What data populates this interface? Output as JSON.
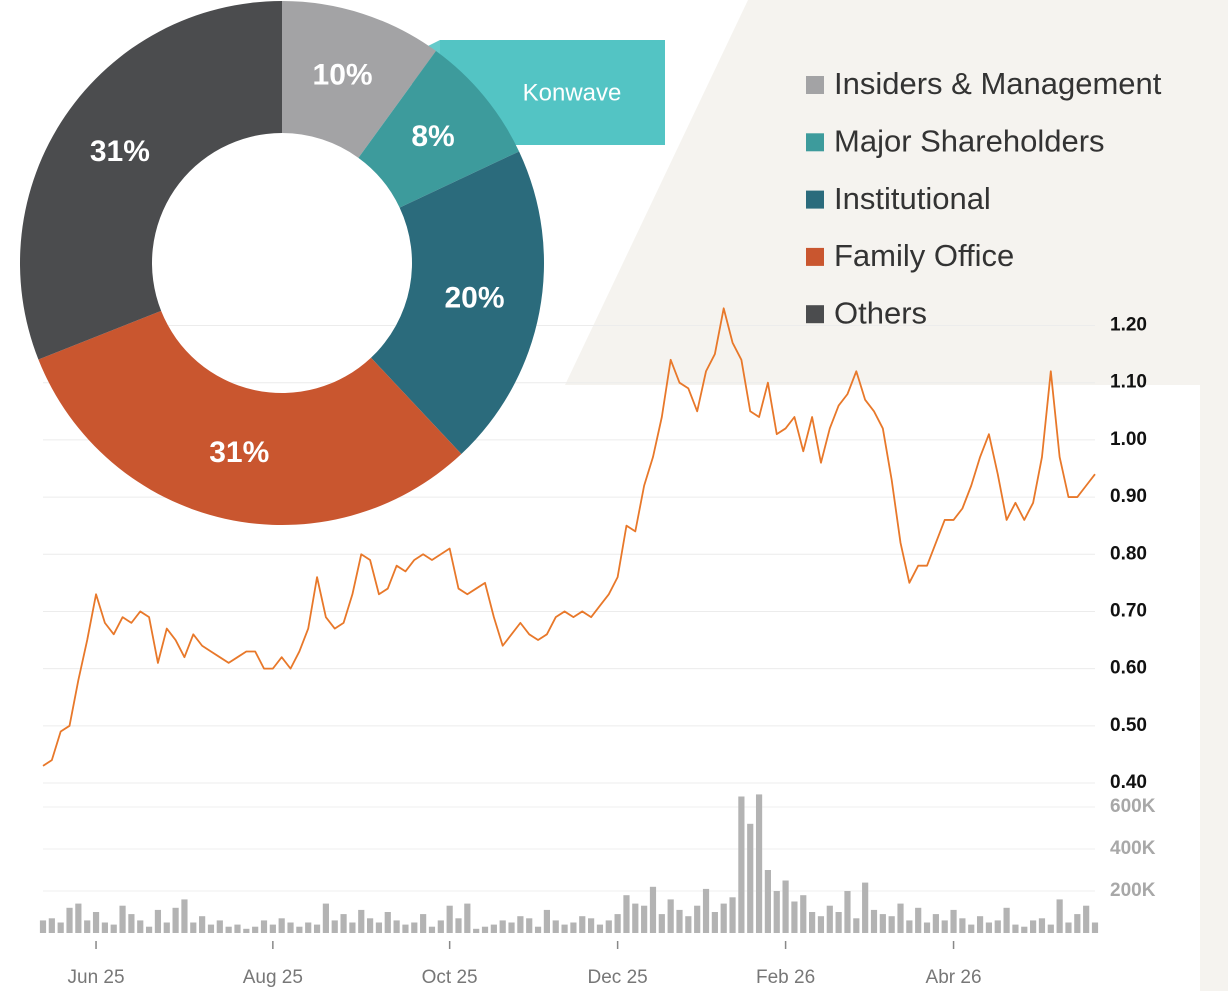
{
  "chart_data": [
    {
      "type": "donut",
      "categories": [
        "Insiders & Management",
        "Major Shareholders",
        "Institutional",
        "Family Office",
        "Others"
      ],
      "values": [
        10,
        8,
        20,
        31,
        31
      ],
      "value_labels": [
        "10%",
        "8%",
        "20%",
        "31%",
        "31%"
      ],
      "colors": [
        "#a3a3a5",
        "#3d9b9c",
        "#2b6b7c",
        "#c9562f",
        "#4b4c4e"
      ],
      "annotation": "Konwave",
      "annotation_color": "#53c4c4",
      "legend": "top-right"
    },
    {
      "type": "line",
      "categories": [
        null,
        null,
        null,
        null,
        null,
        null,
        "Jun 25",
        null,
        null,
        null,
        null,
        null,
        null,
        null,
        null,
        null,
        null,
        null,
        null,
        null,
        null,
        null,
        null,
        null,
        null,
        null,
        "Aug 25",
        null,
        null,
        null,
        null,
        null,
        null,
        null,
        null,
        null,
        null,
        null,
        null,
        null,
        null,
        null,
        null,
        null,
        null,
        null,
        "Oct 25",
        null,
        null,
        null,
        null,
        null,
        null,
        null,
        null,
        null,
        null,
        null,
        null,
        null,
        null,
        null,
        null,
        null,
        null,
        "Dec 25",
        null,
        null,
        null,
        null,
        null,
        null,
        null,
        null,
        null,
        null,
        null,
        null,
        null,
        null,
        null,
        null,
        null,
        null,
        "Feb 26",
        null,
        null,
        null,
        null,
        null,
        null,
        null,
        null,
        null,
        null,
        null,
        null,
        null,
        null,
        null,
        null,
        null,
        null,
        "Abr 26",
        null,
        null,
        null,
        null,
        null,
        null,
        null,
        null,
        null,
        null,
        null,
        null,
        null,
        null,
        null,
        null
      ],
      "series": [
        {
          "color": "#e8782a",
          "values": [
            0.43,
            0.44,
            0.49,
            0.5,
            0.58,
            0.65,
            0.73,
            0.68,
            0.66,
            0.69,
            0.68,
            0.7,
            0.69,
            0.61,
            0.67,
            0.65,
            0.62,
            0.66,
            0.64,
            0.63,
            0.62,
            0.61,
            0.62,
            0.63,
            0.63,
            0.6,
            0.6,
            0.62,
            0.6,
            0.63,
            0.67,
            0.76,
            0.69,
            0.67,
            0.68,
            0.73,
            0.8,
            0.79,
            0.73,
            0.74,
            0.78,
            0.77,
            0.79,
            0.8,
            0.79,
            0.8,
            0.81,
            0.74,
            0.73,
            0.74,
            0.75,
            0.69,
            0.64,
            0.66,
            0.68,
            0.66,
            0.65,
            0.66,
            0.69,
            0.7,
            0.69,
            0.7,
            0.69,
            0.71,
            0.73,
            0.76,
            0.85,
            0.84,
            0.92,
            0.97,
            1.04,
            1.14,
            1.1,
            1.09,
            1.05,
            1.12,
            1.15,
            1.23,
            1.17,
            1.14,
            1.05,
            1.04,
            1.1,
            1.01,
            1.02,
            1.04,
            0.98,
            1.04,
            0.96,
            1.02,
            1.06,
            1.08,
            1.12,
            1.07,
            1.05,
            1.02,
            0.93,
            0.82,
            0.75,
            0.78,
            0.78,
            0.82,
            0.86,
            0.86,
            0.88,
            0.92,
            0.97,
            1.01,
            0.94,
            0.86,
            0.89,
            0.86,
            0.89,
            0.97,
            1.12,
            0.97,
            0.9,
            0.9,
            0.92,
            0.94
          ]
        }
      ],
      "ylim": [
        0.4,
        1.25
      ],
      "yticks": [
        {
          "value": 0.4,
          "label": "0.40"
        },
        {
          "value": 0.5,
          "label": "0.50"
        },
        {
          "value": 0.6,
          "label": "0.60"
        },
        {
          "value": 0.7,
          "label": "0.70"
        },
        {
          "value": 0.8,
          "label": "0.80"
        },
        {
          "value": 0.9,
          "label": "0.90"
        },
        {
          "value": 1.0,
          "label": "1.00"
        },
        {
          "value": 1.1,
          "label": "1.10"
        },
        {
          "value": 1.2,
          "label": "1.20"
        }
      ],
      "grid": true
    },
    {
      "type": "bar",
      "color": "#b3b3b3",
      "values": [
        60000,
        70000,
        50000,
        120000,
        140000,
        60000,
        100000,
        50000,
        40000,
        130000,
        90000,
        60000,
        30000,
        110000,
        50000,
        120000,
        160000,
        50000,
        80000,
        40000,
        60000,
        30000,
        40000,
        20000,
        30000,
        60000,
        40000,
        70000,
        50000,
        30000,
        50000,
        40000,
        140000,
        60000,
        90000,
        50000,
        110000,
        70000,
        50000,
        100000,
        60000,
        40000,
        50000,
        90000,
        30000,
        60000,
        130000,
        70000,
        140000,
        20000,
        30000,
        40000,
        60000,
        50000,
        80000,
        70000,
        30000,
        110000,
        60000,
        40000,
        50000,
        80000,
        70000,
        40000,
        60000,
        90000,
        180000,
        140000,
        130000,
        220000,
        90000,
        160000,
        110000,
        80000,
        130000,
        210000,
        100000,
        140000,
        170000,
        650000,
        520000,
        660000,
        300000,
        200000,
        250000,
        150000,
        180000,
        100000,
        80000,
        130000,
        100000,
        200000,
        70000,
        240000,
        110000,
        90000,
        80000,
        140000,
        60000,
        120000,
        50000,
        90000,
        60000,
        110000,
        70000,
        40000,
        80000,
        50000,
        60000,
        120000,
        40000,
        30000,
        60000,
        70000,
        40000,
        160000,
        50000,
        90000,
        130000,
        50000
      ],
      "ylim": [
        0,
        750000
      ],
      "yticks": [
        {
          "value": 200000,
          "label": "200K"
        },
        {
          "value": 400000,
          "label": "400K"
        },
        {
          "value": 600000,
          "label": "600K"
        }
      ],
      "grid": true
    }
  ]
}
